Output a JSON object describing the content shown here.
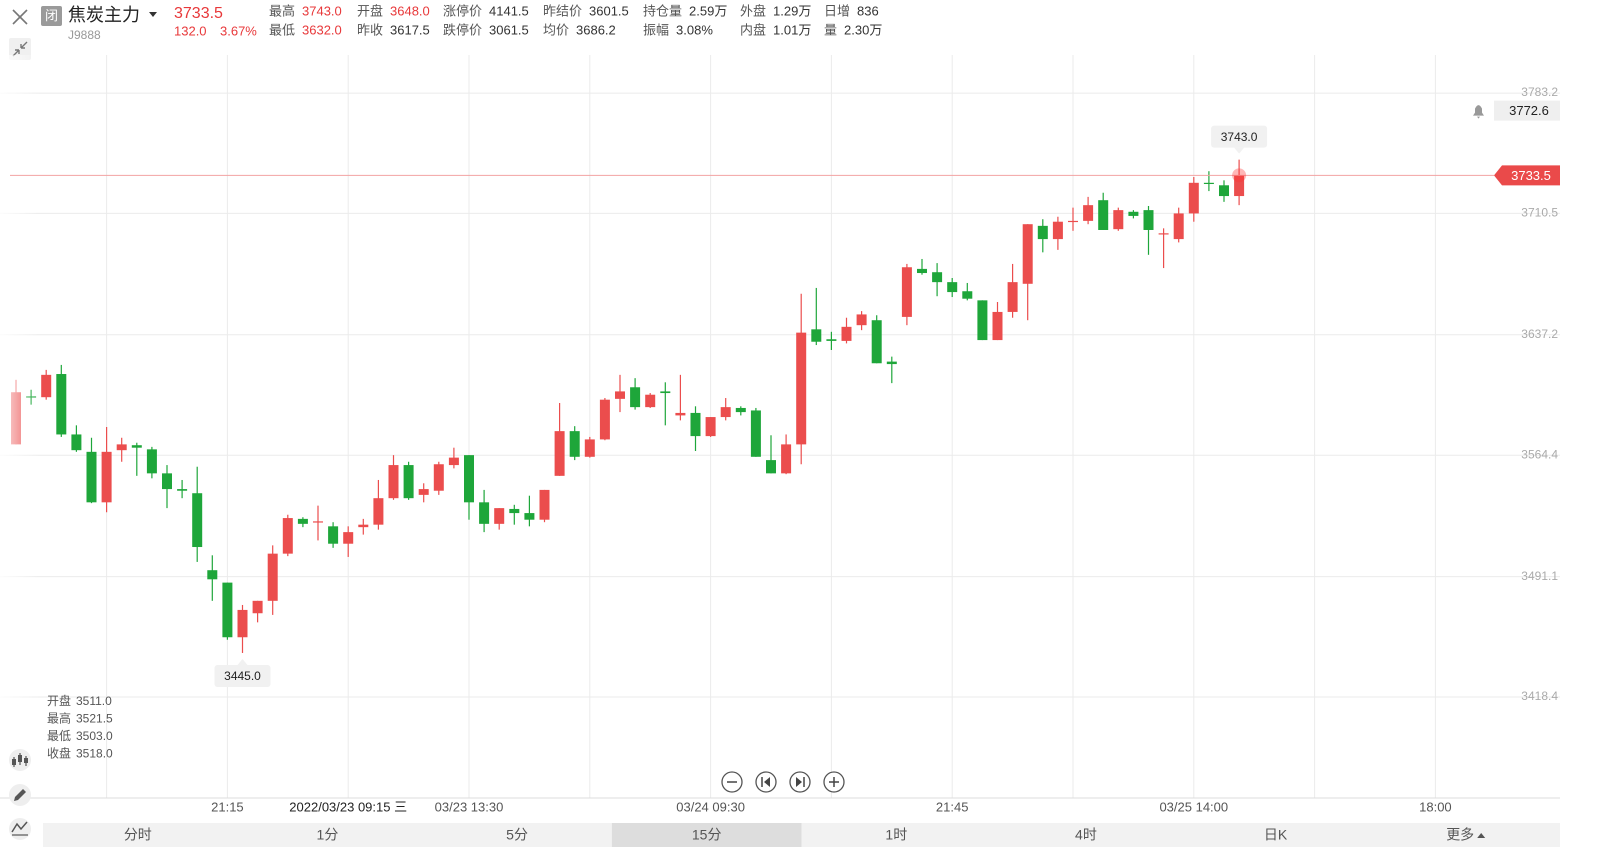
{
  "header": {
    "badge": "闭",
    "name": "焦炭主力",
    "code": "J9888",
    "price": "3733.5",
    "change": "132.0",
    "change_pct": "3.67%"
  },
  "stats": [
    [
      {
        "label": "最高",
        "value": "3743.0",
        "color": "#e8383a"
      },
      {
        "label": "开盘",
        "value": "3648.0",
        "color": "#e8383a"
      },
      {
        "label": "涨停价",
        "value": "4141.5"
      },
      {
        "label": "昨结价",
        "value": "3601.5"
      },
      {
        "label": "持仓量",
        "value": "2.59万"
      },
      {
        "label": "外盘",
        "value": "1.29万"
      },
      {
        "label": "日增",
        "value": "836"
      }
    ],
    [
      {
        "label": "最低",
        "value": "3632.0",
        "color": "#e8383a"
      },
      {
        "label": "昨收",
        "value": "3617.5"
      },
      {
        "label": "跌停价",
        "value": "3061.5"
      },
      {
        "label": "均价",
        "value": "3686.2"
      },
      {
        "label": "振幅",
        "value": "3.08%"
      },
      {
        "label": "内盘",
        "value": "1.01万"
      },
      {
        "label": "量",
        "value": "2.30万"
      }
    ]
  ],
  "ohlc_panel": [
    {
      "label": "开盘",
      "value": "3511.0"
    },
    {
      "label": "最高",
      "value": "3521.5"
    },
    {
      "label": "最低",
      "value": "3503.0"
    },
    {
      "label": "收盘",
      "value": "3518.0"
    }
  ],
  "tabs": [
    "分时",
    "1分",
    "5分",
    "15分",
    "1时",
    "4时",
    "日K",
    "更多"
  ],
  "active_tab_index": 3,
  "chart_data": {
    "type": "candlestick",
    "up_color": "#eb4d4d",
    "down_color": "#1ea63a",
    "categories": [
      null,
      null,
      null,
      null,
      null,
      null,
      null,
      null,
      null,
      null,
      null,
      null,
      null,
      null,
      "21:15",
      null,
      null,
      null,
      null,
      null,
      null,
      null,
      "2022/03/23 09:15 三",
      null,
      null,
      null,
      null,
      null,
      null,
      null,
      "03/23 13:30",
      null,
      null,
      null,
      null,
      null,
      null,
      null,
      null,
      null,
      null,
      null,
      null,
      null,
      null,
      null,
      "03/24 09:30",
      null,
      null,
      null,
      null,
      null,
      null,
      null,
      null,
      null,
      null,
      null,
      null,
      null,
      null,
      null,
      "21:45",
      null,
      null,
      null,
      null,
      null,
      null,
      null,
      null,
      null,
      null,
      null,
      null,
      null,
      null,
      null,
      "03/25 14:00",
      null,
      null,
      null,
      null,
      null,
      null,
      null,
      null,
      null,
      null,
      null,
      null,
      null,
      null,
      null,
      "18:00"
    ],
    "open": [
      3571,
      3600,
      3599.5,
      3613.5,
      3577,
      3566.5,
      3536,
      3567.5,
      3570.5,
      3568,
      3553.5,
      3544,
      3541.5,
      3495,
      3487.5,
      3454.5,
      3469,
      3476.5,
      3505,
      3526,
      3524,
      3521.5,
      3511,
      3521,
      3522.5,
      3538.5,
      3558.5,
      3540.5,
      3543,
      3558.5,
      3564.5,
      3536,
      3523,
      3532,
      3529.5,
      3525.5,
      3552,
      3579,
      3563.5,
      3574,
      3598.5,
      3605.5,
      3593.5,
      3603,
      3588.5,
      3590,
      3576,
      3587.5,
      3593,
      3591.5,
      3561.5,
      3553.5,
      3571,
      3640.5,
      3634.5,
      3633.5,
      3643,
      3646,
      3621,
      3648,
      3677,
      3675,
      3669,
      3663.5,
      3658,
      3634,
      3651,
      3668,
      3703,
      3695,
      3705.5,
      3706,
      3718.5,
      3701,
      3711.5,
      3712.5,
      3698,
      3695,
      3710.5,
      3729,
      3727.5,
      3721,
      null,
      null,
      null,
      null,
      null,
      null,
      null,
      null,
      null,
      null,
      null,
      null,
      null
    ],
    "high": [
      3610,
      3604,
      3616,
      3619,
      3582.5,
      3575,
      3581.5,
      3575,
      3572,
      3569.5,
      3558.5,
      3549.5,
      3557.5,
      3504,
      3487.5,
      3474,
      3476.5,
      3510,
      3528.5,
      3527,
      3534,
      3524,
      3521.5,
      3526,
      3549.5,
      3564.5,
      3560.5,
      3547.5,
      3560.5,
      3569,
      3564.5,
      3543.5,
      3532.5,
      3534.5,
      3540,
      3543.5,
      3596,
      3582,
      3575.5,
      3599,
      3613,
      3611,
      3602,
      3608.5,
      3613,
      3594,
      3587.5,
      3599,
      3594,
      3593,
      3576.5,
      3577,
      3662,
      3665.5,
      3639,
      3647.5,
      3651.5,
      3649,
      3624,
      3680,
      3683,
      3680.5,
      3671.5,
      3668.5,
      3658,
      3657,
      3680,
      3704,
      3707,
      3708.5,
      3714,
      3720.5,
      3723,
      3714,
      3712.5,
      3715,
      3701.5,
      3714,
      3732.5,
      3736,
      3730.5,
      3743,
      null,
      null,
      null,
      null,
      null,
      null,
      null,
      null,
      null,
      null,
      null,
      null,
      null
    ],
    "low": [
      3571,
      3595,
      3598,
      3575.5,
      3566.5,
      3535.5,
      3530,
      3560.5,
      3552,
      3550.5,
      3532.5,
      3538.5,
      3500,
      3476.5,
      3453,
      3445,
      3463.5,
      3468,
      3503.5,
      3521,
      3513,
      3508.5,
      3503,
      3516.5,
      3519.5,
      3537.5,
      3537.5,
      3536,
      3540.5,
      3556.5,
      3525.5,
      3518,
      3519.5,
      3522.5,
      3521.5,
      3524,
      3552,
      3561.5,
      3563,
      3573.5,
      3590.5,
      3592,
      3593,
      3582.5,
      3585.5,
      3567,
      3575.5,
      3585.5,
      3588.5,
      3563.5,
      3553.5,
      3553,
      3559,
      3631,
      3628,
      3632,
      3640,
      3620,
      3608,
      3643,
      3673.5,
      3660.5,
      3660,
      3658,
      3634,
      3634,
      3647.5,
      3646,
      3687,
      3688.5,
      3700,
      3704,
      3700.5,
      3700,
      3707.5,
      3685.5,
      3677.5,
      3693,
      3705.5,
      3724,
      3717.5,
      3715.5,
      null,
      null,
      null,
      null,
      null,
      null,
      null,
      null,
      null,
      null,
      null,
      null,
      null
    ],
    "close": [
      3602.5,
      3599.5,
      3613,
      3577,
      3567.5,
      3536,
      3566.5,
      3571,
      3569,
      3553.5,
      3544,
      3543,
      3509,
      3489.5,
      3454.5,
      3471,
      3476.5,
      3505,
      3526.5,
      3523,
      3524.5,
      3511,
      3518,
      3522.5,
      3538.5,
      3558.5,
      3538.5,
      3544,
      3559,
      3563,
      3536,
      3523,
      3532.5,
      3529.5,
      3525.5,
      3543.5,
      3579,
      3563.5,
      3574,
      3598,
      3603,
      3593.5,
      3601,
      3602,
      3590,
      3576,
      3587.5,
      3593.5,
      3590.5,
      3563.5,
      3553.5,
      3571,
      3638.5,
      3633,
      3633.5,
      3642,
      3649.5,
      3620,
      3619.5,
      3678,
      3674.5,
      3669,
      3663,
      3659,
      3634,
      3651,
      3669,
      3704,
      3695,
      3705.5,
      3706,
      3715.5,
      3700.5,
      3712.5,
      3709,
      3700.5,
      3698.5,
      3710.5,
      3729,
      3728.5,
      3721,
      3733.5,
      null,
      null,
      null,
      null,
      null,
      null,
      null,
      null,
      null,
      null,
      null,
      null,
      null
    ],
    "ylim": [
      3357.4,
      3806.2
    ],
    "yticks": [
      3783.2,
      3710.5,
      3637.2,
      3564.4,
      3491.1,
      3418.4
    ],
    "grid": true,
    "max_label": {
      "value": 3743,
      "label": "3743.0"
    },
    "min_label": {
      "value": 3445,
      "label": "3445.0"
    },
    "last_price": 3733.5,
    "alert_price": 3772.6
  }
}
